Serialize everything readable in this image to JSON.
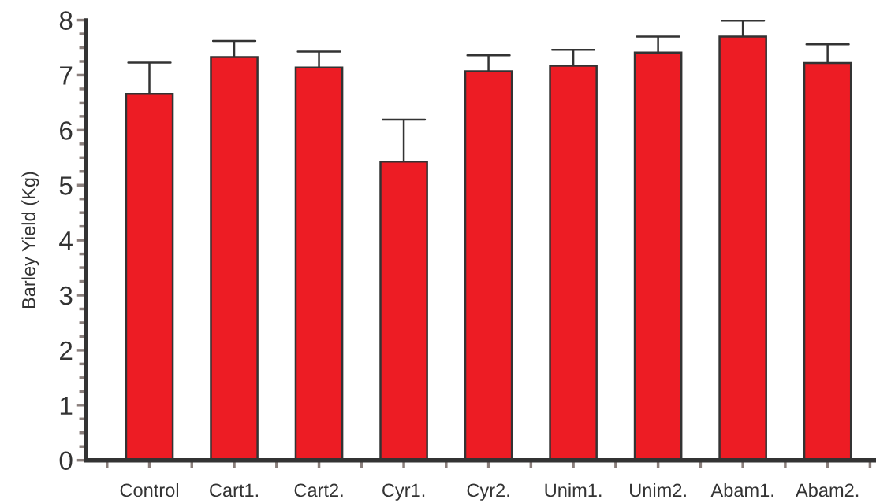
{
  "chart_data": {
    "type": "bar",
    "ylabel": "Barley Yield (Kg)",
    "categories": [
      "Control",
      "Cart1.",
      "Cart2.",
      "Cyr1.",
      "Cyr2.",
      "Unim1.",
      "Unim2.",
      "Abam1.",
      "Abam2."
    ],
    "values": [
      6.66,
      7.33,
      7.14,
      5.43,
      7.07,
      7.17,
      7.41,
      7.7,
      7.22
    ],
    "errors": [
      [
        6.66,
        7.23
      ],
      [
        7.33,
        7.62
      ],
      [
        7.14,
        7.43
      ],
      [
        5.43,
        6.19
      ],
      [
        7.07,
        7.36
      ],
      [
        7.17,
        7.46
      ],
      [
        7.41,
        7.7
      ],
      [
        7.7,
        7.99
      ],
      [
        7.22,
        7.56
      ]
    ],
    "color": "#ed1c24",
    "ylim": [
      0,
      8
    ],
    "yticks": [
      0,
      1,
      2,
      3,
      4,
      5,
      6,
      7,
      8
    ],
    "grid": false
  }
}
